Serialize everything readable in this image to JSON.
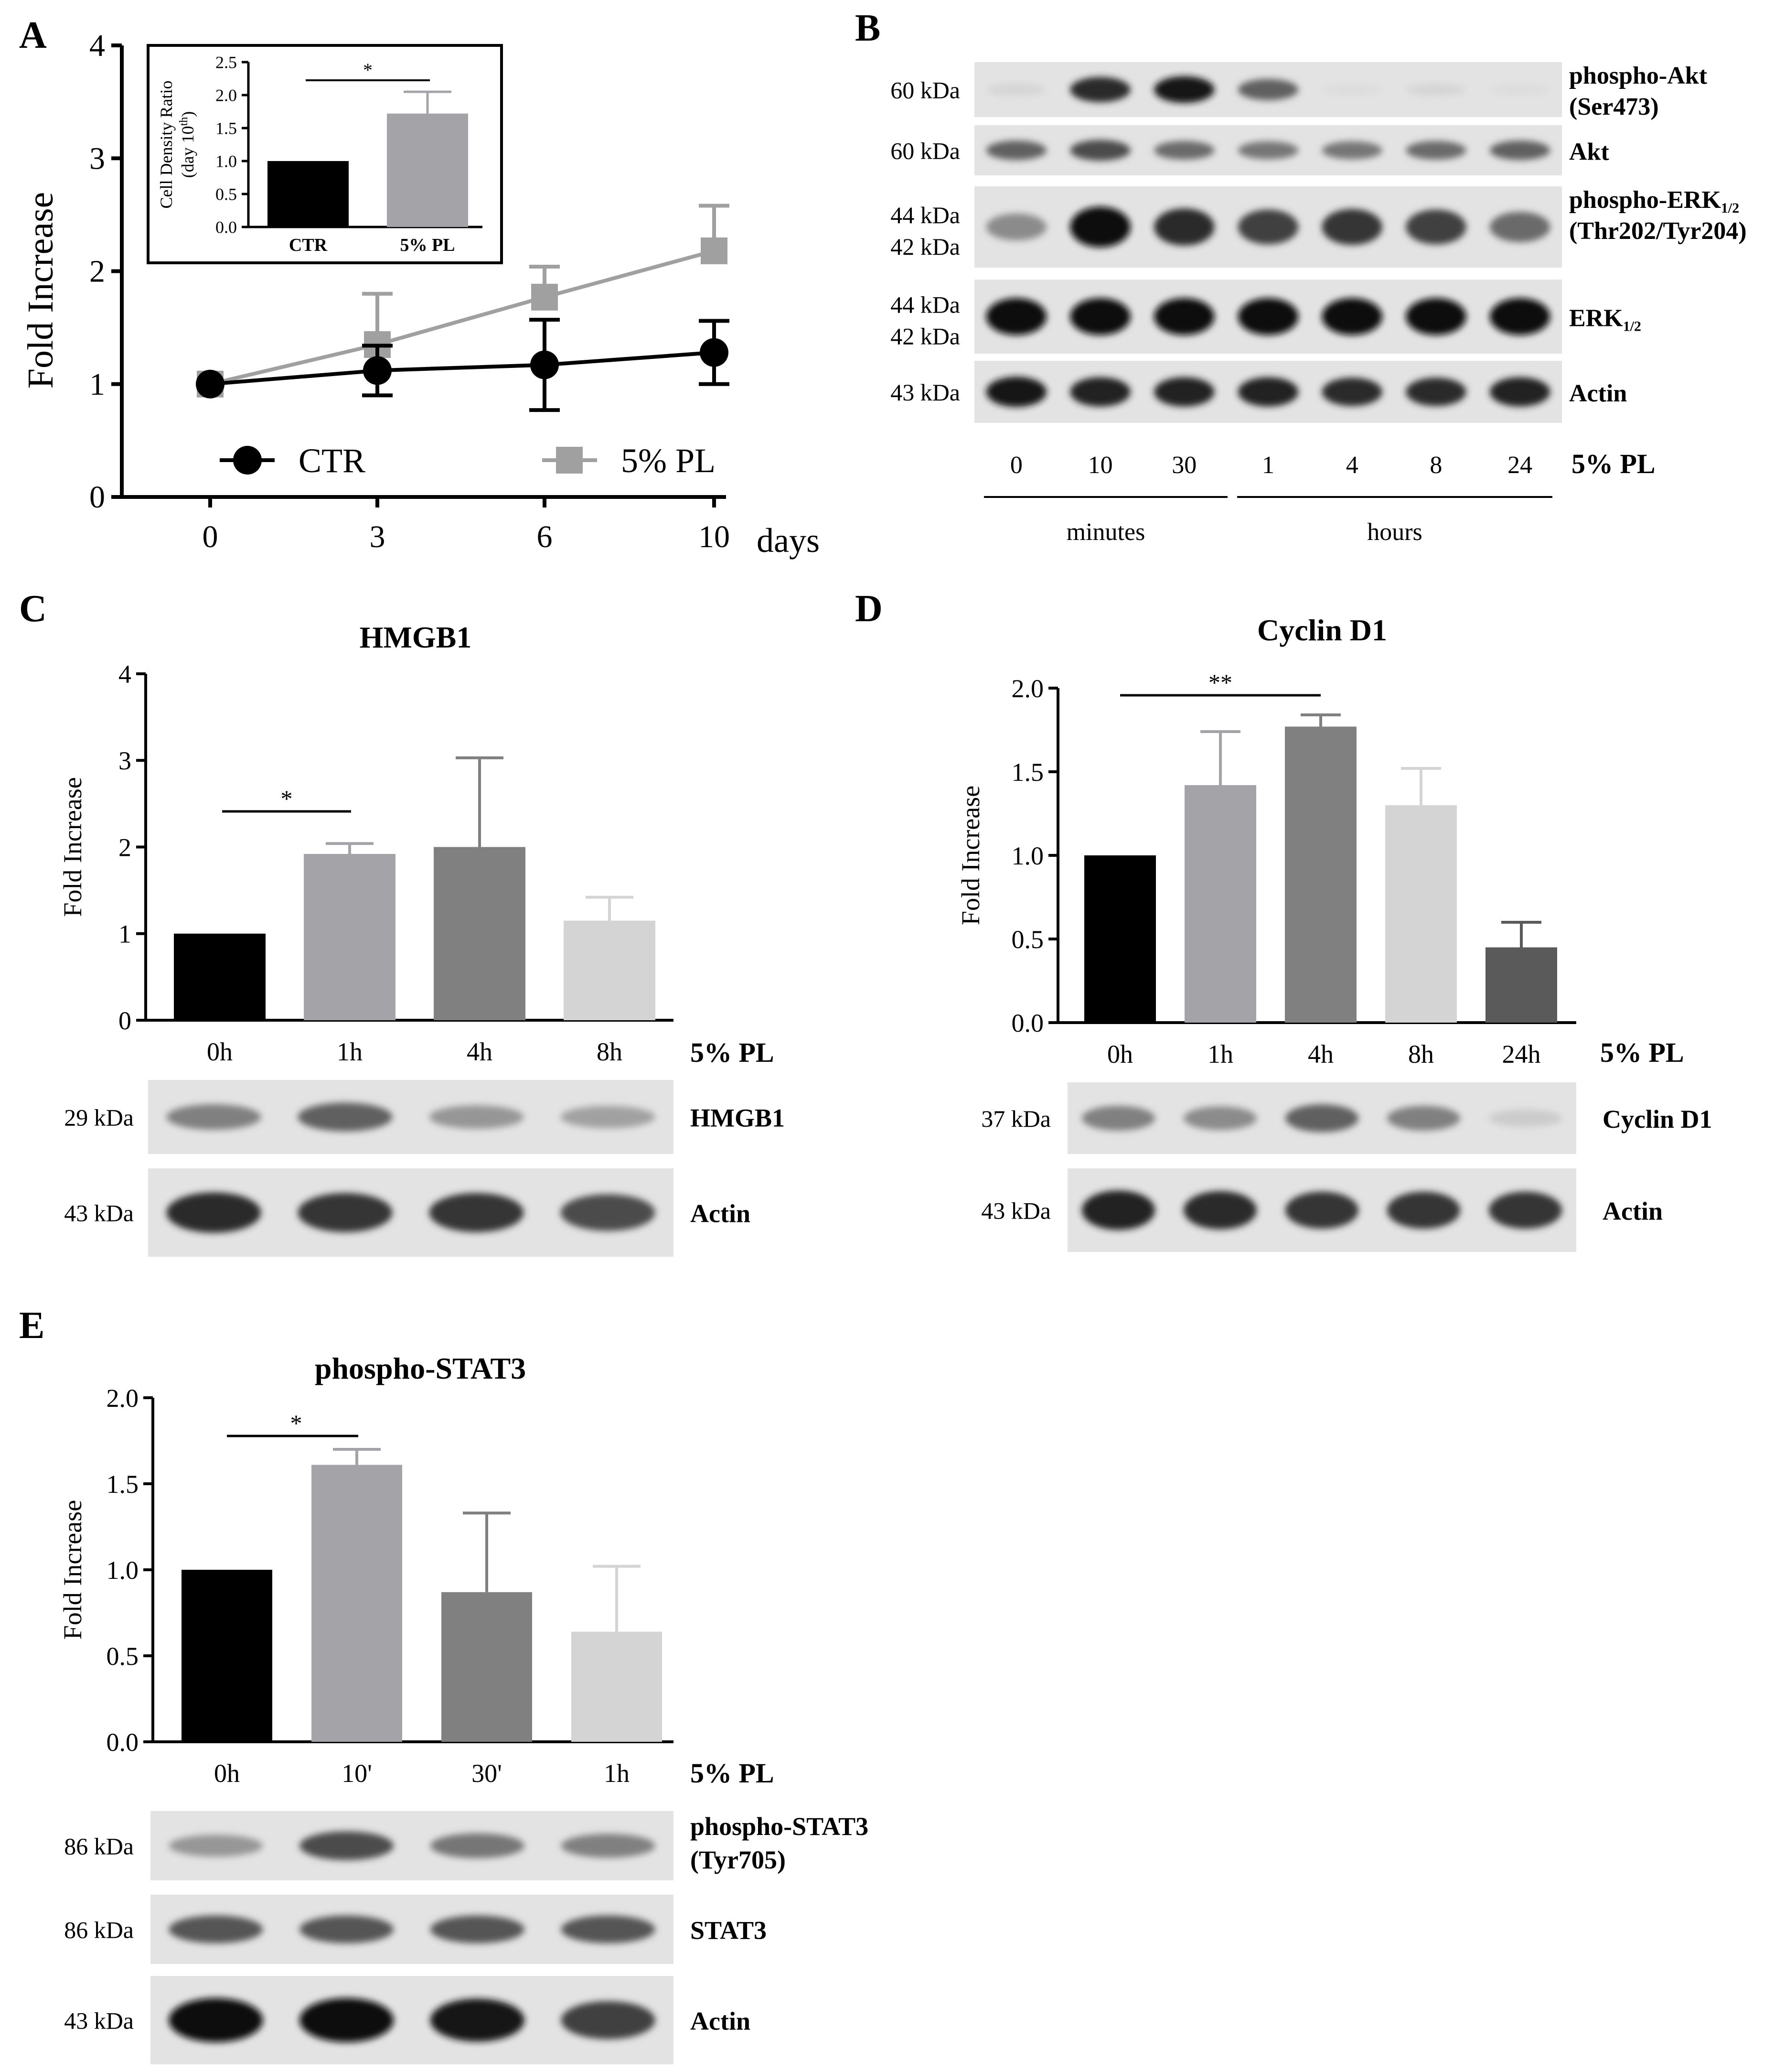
{
  "colors": {
    "black": "#000000",
    "ctr_gray": "#a0a0a0",
    "mid_gray": "#808080",
    "light_gray": "#d4d4d4",
    "dark_gray": "#5a5a5a",
    "bar_gray": "#a3a3a8",
    "blot_bg": "#e3e3e3"
  },
  "panels": {
    "A": {
      "letter": "A",
      "ylabel": "Fold Increase",
      "xunit": "days",
      "legend_ctr": "CTR",
      "legend_pl": "5% PL",
      "inset": {
        "ylabel_line1": "Cell Density Ratio",
        "ylabel_line2": "(day 10",
        "ylabel_sup": "th",
        "ylabel_close": ")",
        "star": "*"
      }
    },
    "B": {
      "letter": "B",
      "rows": [
        {
          "kda": [
            "60 kDa"
          ],
          "label": "phospho-Akt",
          "label2": "(Ser473)",
          "intensity": [
            0.05,
            0.85,
            0.95,
            0.6,
            0.02,
            0.05,
            0.02
          ]
        },
        {
          "kda": [
            "60 kDa"
          ],
          "label": "Akt",
          "label2": "",
          "intensity": [
            0.6,
            0.7,
            0.55,
            0.5,
            0.5,
            0.55,
            0.6
          ]
        },
        {
          "kda": [
            "44 kDa",
            "42 kDa"
          ],
          "label": "phospho-ERK",
          "sub": "1/2",
          "label2": "(Thr202/Tyr204)",
          "intensity": [
            0.4,
            1.0,
            0.85,
            0.75,
            0.8,
            0.75,
            0.55
          ]
        },
        {
          "kda": [
            "44 kDa",
            "42 kDa"
          ],
          "label": "ERK",
          "sub": "1/2",
          "label2": "",
          "intensity": [
            1.0,
            1.0,
            1.0,
            1.0,
            1.0,
            1.0,
            1.0
          ]
        },
        {
          "kda": [
            "43 kDa"
          ],
          "label": "Actin",
          "label2": "",
          "intensity": [
            0.95,
            0.9,
            0.9,
            0.9,
            0.85,
            0.85,
            0.9
          ]
        }
      ],
      "lanes": [
        "0",
        "10",
        "30",
        "1",
        "4",
        "8",
        "24"
      ],
      "treatment": "5% PL",
      "group_minutes": "minutes",
      "group_hours": "hours"
    },
    "C": {
      "letter": "C",
      "title": "HMGB1",
      "ylabel": "Fold Increase",
      "treatment": "5% PL",
      "star": "*",
      "blots": [
        {
          "kda": "29 kDa",
          "label": "HMGB1",
          "intensity": [
            0.45,
            0.6,
            0.35,
            0.3
          ]
        },
        {
          "kda": "43 kDa",
          "label": "Actin",
          "intensity": [
            0.85,
            0.8,
            0.8,
            0.7
          ]
        }
      ]
    },
    "D": {
      "letter": "D",
      "title": "Cyclin D1",
      "ylabel": "Fold Increase",
      "treatment": "5% PL",
      "star": "**",
      "blots": [
        {
          "kda": "37 kDa",
          "label": "Cyclin D1",
          "intensity": [
            0.45,
            0.4,
            0.6,
            0.45,
            0.1
          ]
        },
        {
          "kda": "43 kDa",
          "label": "Actin",
          "intensity": [
            0.9,
            0.85,
            0.8,
            0.8,
            0.8
          ]
        }
      ]
    },
    "E": {
      "letter": "E",
      "title": "phospho-STAT3",
      "ylabel": "Fold Increase",
      "treatment": "5% PL",
      "star": "*",
      "blots": [
        {
          "kda": "86 kDa",
          "label": "phospho-STAT3",
          "label2": "(Tyr705)",
          "intensity": [
            0.35,
            0.7,
            0.5,
            0.45
          ]
        },
        {
          "kda": "86 kDa",
          "label": "STAT3",
          "label2": "",
          "intensity": [
            0.65,
            0.65,
            0.65,
            0.65
          ]
        },
        {
          "kda": "43 kDa",
          "label": "Actin",
          "label2": "",
          "intensity": [
            1.0,
            1.0,
            0.95,
            0.75
          ]
        }
      ]
    }
  },
  "chart_data": [
    {
      "panel": "A",
      "type": "line",
      "x": [
        0,
        3,
        6,
        10
      ],
      "xlabel": "days",
      "ylabel": "Fold Increase",
      "ylim": [
        0,
        4
      ],
      "yticks": [
        0,
        1,
        2,
        3,
        4
      ],
      "series": [
        {
          "name": "CTR",
          "y": [
            1.0,
            1.12,
            1.17,
            1.28
          ],
          "err": [
            0.02,
            0.22,
            0.4,
            0.28
          ]
        },
        {
          "name": "5% PL",
          "y": [
            1.0,
            1.35,
            1.77,
            2.18
          ],
          "err": [
            0.02,
            0.45,
            0.27,
            0.4
          ]
        }
      ]
    },
    {
      "panel": "A-inset",
      "type": "bar",
      "categories": [
        "CTR",
        "5% PL"
      ],
      "values": [
        1.0,
        1.72
      ],
      "err": [
        0,
        0.33
      ],
      "ylim": [
        0,
        2.5
      ],
      "yticks": [
        "0.0",
        "0.5",
        "1.0",
        "1.5",
        "2.0",
        "2.5"
      ]
    },
    {
      "panel": "C",
      "type": "bar",
      "title": "HMGB1",
      "categories": [
        "0h",
        "1h",
        "4h",
        "8h"
      ],
      "values": [
        1.0,
        1.92,
        2.0,
        1.15
      ],
      "err": [
        0,
        0.12,
        1.03,
        0.27
      ],
      "ylim": [
        0,
        4
      ],
      "yticks": [
        "0",
        "1",
        "2",
        "3",
        "4"
      ],
      "ylabel": "Fold Increase"
    },
    {
      "panel": "D",
      "type": "bar",
      "title": "Cyclin D1",
      "categories": [
        "0h",
        "1h",
        "4h",
        "8h",
        "24h"
      ],
      "values": [
        1.0,
        1.42,
        1.77,
        1.3,
        0.45
      ],
      "err": [
        0,
        0.32,
        0.07,
        0.22,
        0.15
      ],
      "ylim": [
        0,
        2.0
      ],
      "yticks": [
        "0.0",
        "0.5",
        "1.0",
        "1.5",
        "2.0"
      ],
      "ylabel": "Fold Increase"
    },
    {
      "panel": "E",
      "type": "bar",
      "title": "phospho-STAT3",
      "categories": [
        "0h",
        "10'",
        "30'",
        "1h"
      ],
      "values": [
        1.0,
        1.61,
        0.87,
        0.64
      ],
      "err": [
        0,
        0.09,
        0.46,
        0.38
      ],
      "ylim": [
        0,
        2.0
      ],
      "yticks": [
        "0.0",
        "0.5",
        "1.0",
        "1.5",
        "2.0"
      ],
      "ylabel": "Fold Increase"
    }
  ]
}
